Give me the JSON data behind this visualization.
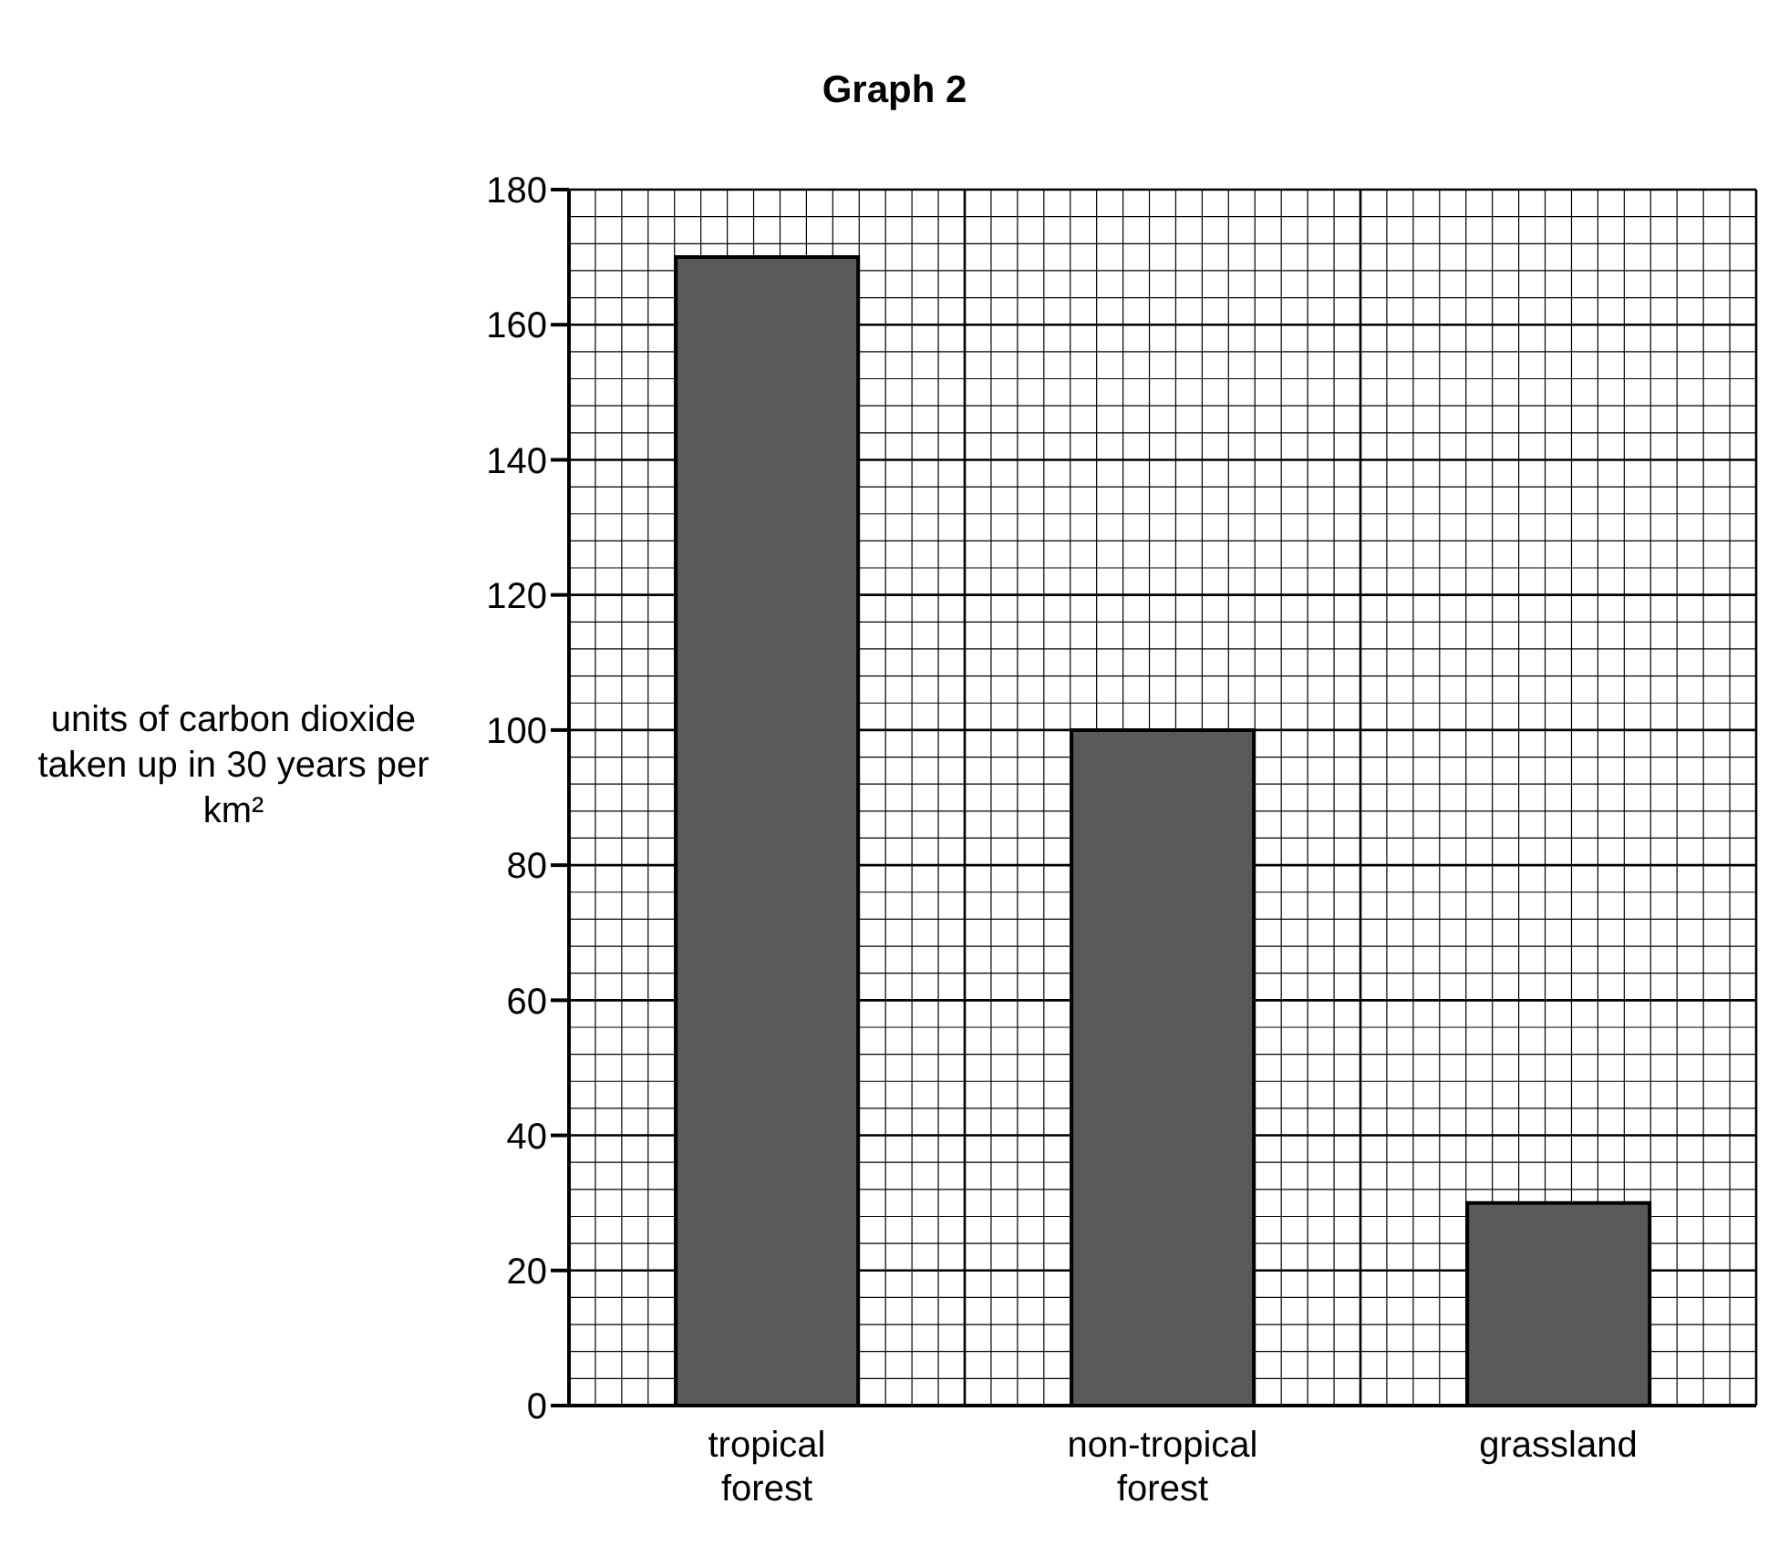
{
  "chart_data": {
    "type": "bar",
    "title": "Graph 2",
    "ylabel": "units of carbon dioxide taken up in 30 years per km²",
    "categories": [
      "tropical forest",
      "non-tropical forest",
      "grassland"
    ],
    "values": [
      170,
      100,
      30
    ],
    "color": "#595959",
    "ylim": [
      0,
      180
    ],
    "yticks": [
      0,
      20,
      40,
      60,
      80,
      100,
      120,
      140,
      160,
      180
    ],
    "grid": true
  }
}
